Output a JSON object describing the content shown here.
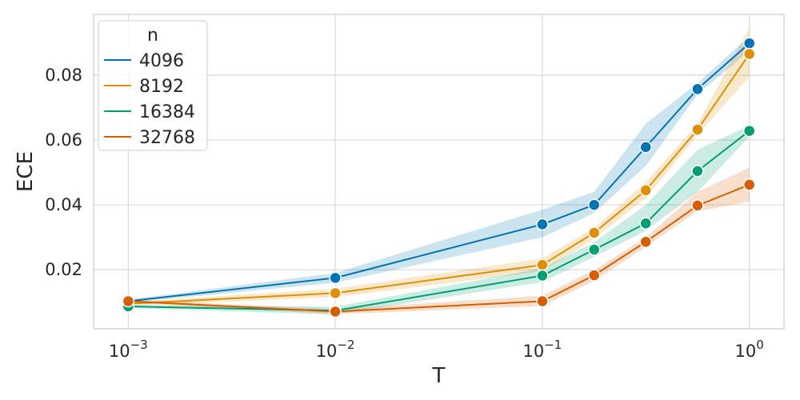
{
  "chart_data": {
    "type": "line",
    "title": "",
    "xlabel": "T",
    "ylabel": "ECE",
    "x_scale": "log",
    "xlim": [
      0.00068,
      1.47
    ],
    "ylim": [
      0.0018,
      0.0987
    ],
    "x_ticks": [
      {
        "value": 0.001,
        "base": "10",
        "exp": "−3"
      },
      {
        "value": 0.01,
        "base": "10",
        "exp": "−2"
      },
      {
        "value": 0.1,
        "base": "10",
        "exp": "−1"
      },
      {
        "value": 1,
        "base": "10",
        "exp": "0"
      }
    ],
    "y_ticks": [
      {
        "value": 0.02,
        "label": "0.02"
      },
      {
        "value": 0.04,
        "label": "0.04"
      },
      {
        "value": 0.06,
        "label": "0.06"
      },
      {
        "value": 0.08,
        "label": "0.08"
      }
    ],
    "grid": true,
    "legend": {
      "title": "n",
      "position": "top-left"
    },
    "x": [
      0.001,
      0.01,
      0.1,
      0.178,
      0.316,
      0.562,
      1.0
    ],
    "series": [
      {
        "name": "4096",
        "color": "#0173b2",
        "values": [
          0.0103,
          0.0175,
          0.034,
          0.04,
          0.0578,
          0.0757,
          0.0898
        ],
        "lower": [
          0.0098,
          0.016,
          0.03,
          0.0375,
          0.052,
          0.074,
          0.0875
        ],
        "upper": [
          0.0108,
          0.019,
          0.0385,
          0.044,
          0.065,
          0.0775,
          0.092
        ]
      },
      {
        "name": "8192",
        "color": "#de8f05",
        "values": [
          0.0095,
          0.0128,
          0.0215,
          0.0314,
          0.0445,
          0.0632,
          0.0865
        ],
        "lower": [
          0.009,
          0.0115,
          0.0195,
          0.0295,
          0.042,
          0.0615,
          0.0795
        ],
        "upper": [
          0.01,
          0.0142,
          0.0235,
          0.033,
          0.047,
          0.065,
          0.0945
        ]
      },
      {
        "name": "16384",
        "color": "#029e73",
        "values": [
          0.0087,
          0.0074,
          0.0182,
          0.0262,
          0.0343,
          0.0504,
          0.0628
        ],
        "lower": [
          0.0082,
          0.0062,
          0.0162,
          0.024,
          0.032,
          0.044,
          0.061
        ],
        "upper": [
          0.0092,
          0.0086,
          0.0205,
          0.0285,
          0.04,
          0.057,
          0.0645
        ]
      },
      {
        "name": "32768",
        "color": "#d55e00",
        "values": [
          0.0103,
          0.0071,
          0.0103,
          0.0183,
          0.0286,
          0.0398,
          0.0462
        ],
        "lower": [
          0.0098,
          0.0063,
          0.0088,
          0.0165,
          0.027,
          0.038,
          0.041
        ],
        "upper": [
          0.0108,
          0.0079,
          0.012,
          0.02,
          0.03,
          0.044,
          0.0515
        ]
      }
    ]
  }
}
